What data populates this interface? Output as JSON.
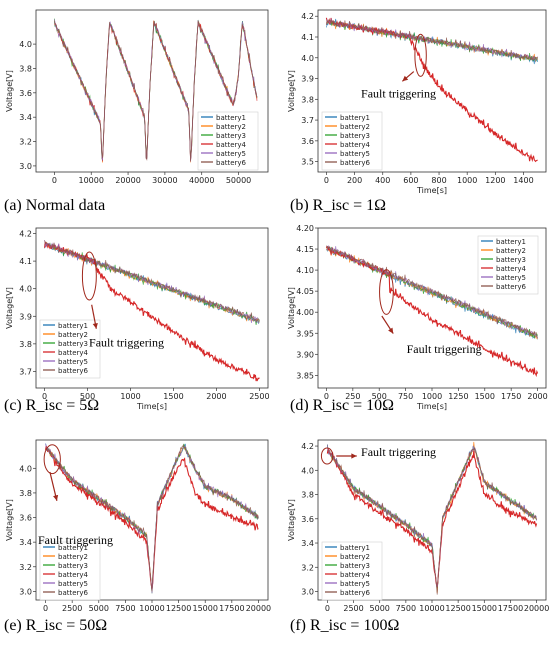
{
  "chart_data": [
    {
      "type": "line",
      "caption": "(a) Normal data",
      "xlabel": "",
      "ylabel": "Voltage[V]",
      "xlim": [
        -5000,
        58000
      ],
      "ylim": [
        2.95,
        4.28
      ],
      "xticks": [
        0,
        10000,
        20000,
        30000,
        40000,
        50000
      ],
      "yticks": [
        3.0,
        3.2,
        3.4,
        3.6,
        3.8,
        4.0
      ],
      "legend_position": "lower-right",
      "series": [
        {
          "name": "battery1",
          "color": "#1f77b4"
        },
        {
          "name": "battery2",
          "color": "#ff7f0e"
        },
        {
          "name": "battery3",
          "color": "#2ca02c"
        },
        {
          "name": "battery4",
          "color": "#d62728"
        },
        {
          "name": "battery5",
          "color": "#9467bd"
        },
        {
          "name": "battery6",
          "color": "#8c564b"
        }
      ],
      "profile": {
        "x": [
          0,
          12500,
          13000,
          14000,
          15000,
          24500,
          25000,
          26000,
          27000,
          36500,
          37000,
          38000,
          39000,
          48500,
          49000,
          50000,
          51000,
          55000
        ],
        "y": [
          4.17,
          3.35,
          3.0,
          3.7,
          4.18,
          3.4,
          3.0,
          3.7,
          4.18,
          3.45,
          3.0,
          3.7,
          4.18,
          3.5,
          3.55,
          3.75,
          4.18,
          3.55
        ]
      },
      "fault": null
    },
    {
      "type": "line",
      "caption": "(b) R_isc = 1Ω",
      "xlabel": "Time[s]",
      "ylabel": "Voltage[V]",
      "xlim": [
        -60,
        1560
      ],
      "ylim": [
        3.45,
        4.23
      ],
      "xticks": [
        0,
        200,
        400,
        600,
        800,
        1000,
        1200,
        1400
      ],
      "yticks": [
        3.5,
        3.6,
        3.7,
        3.8,
        3.9,
        4.0,
        4.1,
        4.2
      ],
      "legend_position": "lower-left",
      "series": [
        {
          "name": "battery1",
          "color": "#1f77b4"
        },
        {
          "name": "battery2",
          "color": "#ff7f0e"
        },
        {
          "name": "battery3",
          "color": "#2ca02c"
        },
        {
          "name": "battery4",
          "color": "#d62728"
        },
        {
          "name": "battery5",
          "color": "#9467bd"
        },
        {
          "name": "battery6",
          "color": "#8c564b"
        }
      ],
      "profile": {
        "x": [
          0,
          1500
        ],
        "y": [
          4.17,
          3.99
        ]
      },
      "fault": {
        "start": 600,
        "x": [
          600,
          700,
          800,
          1000,
          1200,
          1400,
          1500
        ],
        "y": [
          4.08,
          3.95,
          3.86,
          3.74,
          3.63,
          3.54,
          3.5
        ]
      },
      "annotation": "Fault triggering"
    },
    {
      "type": "line",
      "caption": "(c) R_isc = 5Ω",
      "xlabel": "Time[s]",
      "ylabel": "Voltage[V]",
      "xlim": [
        -100,
        2600
      ],
      "ylim": [
        3.64,
        4.22
      ],
      "xticks": [
        0,
        500,
        1000,
        1500,
        2000,
        2500
      ],
      "yticks": [
        3.7,
        3.8,
        3.9,
        4.0,
        4.1,
        4.2
      ],
      "legend_position": "lower-left",
      "series": [
        {
          "name": "battery1",
          "color": "#1f77b4"
        },
        {
          "name": "battery2",
          "color": "#ff7f0e"
        },
        {
          "name": "battery3",
          "color": "#2ca02c"
        },
        {
          "name": "battery4",
          "color": "#d62728"
        },
        {
          "name": "battery5",
          "color": "#9467bd"
        },
        {
          "name": "battery6",
          "color": "#8c564b"
        }
      ],
      "profile": {
        "x": [
          0,
          2500
        ],
        "y": [
          4.16,
          3.88
        ]
      },
      "fault": {
        "start": 600,
        "x": [
          600,
          800,
          1000,
          1500,
          2000,
          2500
        ],
        "y": [
          4.07,
          3.99,
          3.95,
          3.84,
          3.74,
          3.67
        ]
      },
      "annotation": "Fault triggering"
    },
    {
      "type": "line",
      "caption": "(d) R_isc = 10Ω",
      "xlabel": "Time[s]",
      "ylabel": "Voltage[V]",
      "xlim": [
        -80,
        2080
      ],
      "ylim": [
        3.82,
        4.2
      ],
      "xticks": [
        0,
        250,
        500,
        750,
        1000,
        1250,
        1500,
        1750,
        2000
      ],
      "yticks": [
        3.85,
        3.9,
        3.95,
        4.0,
        4.05,
        4.1,
        4.15,
        4.2
      ],
      "legend_position": "upper-right",
      "series": [
        {
          "name": "battery1",
          "color": "#1f77b4"
        },
        {
          "name": "battery2",
          "color": "#ff7f0e"
        },
        {
          "name": "battery3",
          "color": "#2ca02c"
        },
        {
          "name": "battery4",
          "color": "#d62728"
        },
        {
          "name": "battery5",
          "color": "#9467bd"
        },
        {
          "name": "battery6",
          "color": "#8c564b"
        }
      ],
      "profile": {
        "x": [
          0,
          2000
        ],
        "y": [
          4.15,
          3.94
        ]
      },
      "fault": {
        "start": 600,
        "x": [
          600,
          1000,
          1500,
          2000
        ],
        "y": [
          4.05,
          3.98,
          3.91,
          3.85
        ]
      },
      "annotation": "Fault triggering"
    },
    {
      "type": "line",
      "caption": "(e) R_isc = 50Ω",
      "xlabel": "",
      "ylabel": "Voltage[V]",
      "xlim": [
        -900,
        20900
      ],
      "ylim": [
        2.93,
        4.23
      ],
      "xticks": [
        0,
        2500,
        5000,
        7500,
        10000,
        12500,
        15000,
        17500,
        20000
      ],
      "yticks": [
        3.0,
        3.2,
        3.4,
        3.6,
        3.8,
        4.0
      ],
      "legend_position": "lower-left",
      "series": [
        {
          "name": "battery1",
          "color": "#1f77b4"
        },
        {
          "name": "battery2",
          "color": "#ff7f0e"
        },
        {
          "name": "battery3",
          "color": "#2ca02c"
        },
        {
          "name": "battery4",
          "color": "#d62728"
        },
        {
          "name": "battery5",
          "color": "#9467bd"
        },
        {
          "name": "battery6",
          "color": "#8c564b"
        }
      ],
      "profile": {
        "x": [
          0,
          2500,
          5000,
          7500,
          9500,
          10000,
          10500,
          12500,
          13000,
          14000,
          15000,
          17500,
          20000
        ],
        "y": [
          4.17,
          3.9,
          3.75,
          3.6,
          3.45,
          3.0,
          3.7,
          4.1,
          4.18,
          4.0,
          3.85,
          3.75,
          3.6
        ]
      },
      "fault": {
        "start": 500,
        "x": [
          500,
          2500,
          5000,
          7500,
          9500,
          10000,
          10500,
          12500,
          13000,
          14000,
          15000,
          17500,
          20000
        ],
        "y": [
          4.1,
          3.87,
          3.72,
          3.56,
          3.4,
          3.0,
          3.65,
          4.02,
          4.08,
          3.8,
          3.7,
          3.6,
          3.52
        ]
      },
      "annotation": "Fault triggering"
    },
    {
      "type": "line",
      "caption": "(f) R_isc = 100Ω",
      "xlabel": "",
      "ylabel": "Voltage[V]",
      "xlim": [
        -900,
        20900
      ],
      "ylim": [
        2.93,
        4.25
      ],
      "xticks": [
        0,
        2500,
        5000,
        7500,
        10000,
        12500,
        15000,
        17500,
        20000
      ],
      "yticks": [
        3.0,
        3.2,
        3.4,
        3.6,
        3.8,
        4.0,
        4.2
      ],
      "legend_position": "lower-left",
      "series": [
        {
          "name": "battery1",
          "color": "#1f77b4"
        },
        {
          "name": "battery2",
          "color": "#ff7f0e"
        },
        {
          "name": "battery3",
          "color": "#2ca02c"
        },
        {
          "name": "battery4",
          "color": "#d62728"
        },
        {
          "name": "battery5",
          "color": "#9467bd"
        },
        {
          "name": "battery6",
          "color": "#8c564b"
        }
      ],
      "profile": {
        "x": [
          0,
          2500,
          5000,
          7500,
          10000,
          10500,
          11000,
          13500,
          14000,
          15000,
          17500,
          20000
        ],
        "y": [
          4.17,
          3.85,
          3.7,
          3.55,
          3.38,
          3.0,
          3.6,
          4.1,
          4.2,
          3.9,
          3.75,
          3.6
        ]
      },
      "fault": {
        "start": 500,
        "x": [
          500,
          2500,
          5000,
          7500,
          10000,
          10500,
          11000,
          13500,
          14000,
          15000,
          17500,
          20000
        ],
        "y": [
          4.12,
          3.8,
          3.65,
          3.5,
          3.33,
          3.0,
          3.55,
          4.05,
          4.12,
          3.8,
          3.65,
          3.55
        ]
      },
      "annotation": "Fault triggering"
    }
  ],
  "colors": {
    "annotation": "#a0281c",
    "axis": "#333333"
  }
}
